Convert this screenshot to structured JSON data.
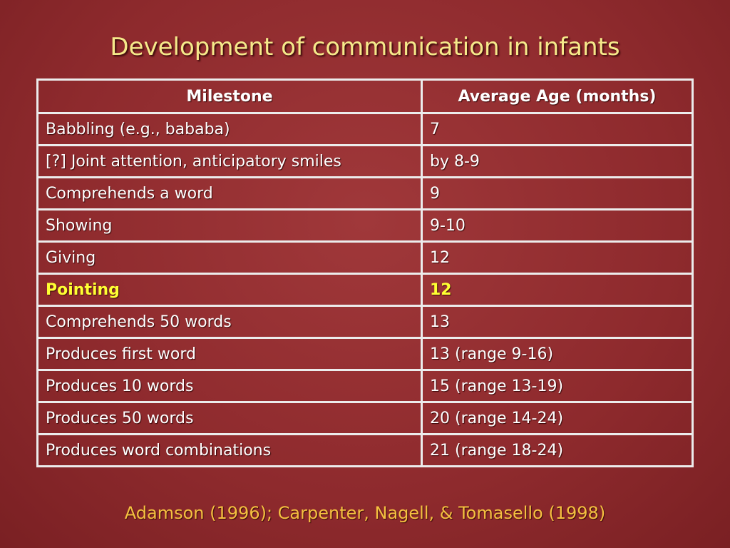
{
  "title": "Development of communication in infants",
  "table": {
    "header": [
      "Milestone",
      "Average Age (months)"
    ],
    "rows": [
      [
        "Babbling (e.g., bababa)",
        "7"
      ],
      [
        "[?] Joint attention, anticipatory smiles",
        "by 8-9"
      ],
      [
        "Comprehends a word",
        "9"
      ],
      [
        "Showing",
        "9-10"
      ],
      [
        "Giving",
        "12"
      ],
      [
        "Pointing",
        "12"
      ],
      [
        "Comprehends 50 words",
        "13"
      ],
      [
        "Produces first word",
        "13 (range 9-16)"
      ],
      [
        "Produces 10 words",
        "15 (range 13-19)"
      ],
      [
        "Produces 50 words",
        "20 (range 14-24)"
      ],
      [
        "Produces word combinations",
        "21 (range 18-24)"
      ]
    ],
    "highlighted_row": 5
  },
  "citation": "Adamson (1996); Carpenter, Nagell, & Tomasello (1998)"
}
